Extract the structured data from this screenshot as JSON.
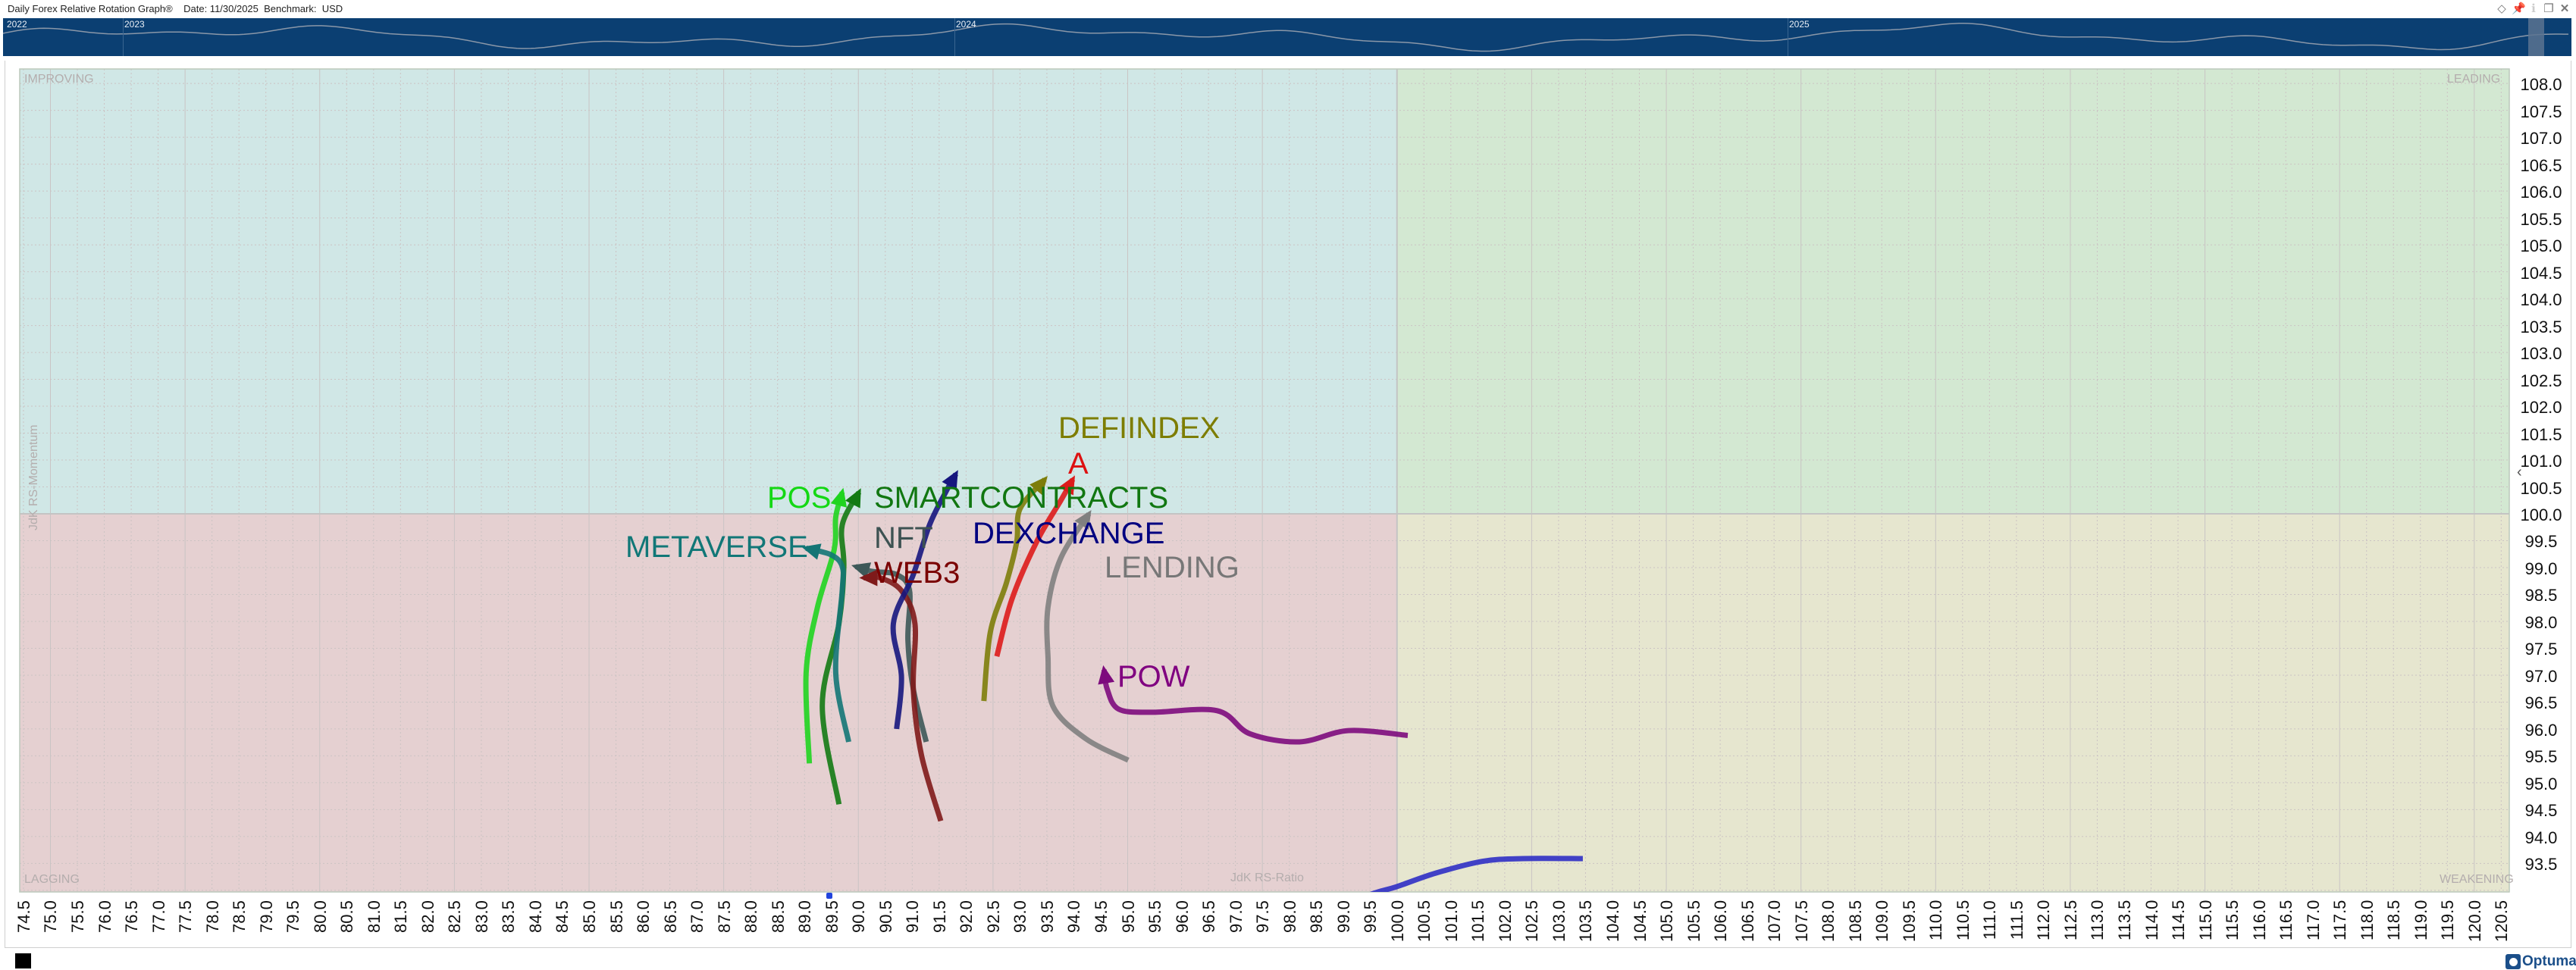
{
  "header": {
    "title": "Daily Forex Relative Rotation Graph®    Date: 11/30/2025  Benchmark:  USD",
    "icons": [
      "diamond-icon",
      "pin-icon",
      "info-icon",
      "restore-icon",
      "close-icon"
    ]
  },
  "navigator": {
    "years": [
      "2022",
      "2023",
      "2024",
      "2025"
    ],
    "background": "#0b3f72"
  },
  "quadrants": {
    "improving": "IMPROVING",
    "leading": "LEADING",
    "lagging": "LAGGING",
    "weakening": "WEAKENING"
  },
  "footer": {
    "logo": "Optuma"
  },
  "chart_data": {
    "type": "scatter",
    "title": "Daily Forex Relative Rotation Graph®",
    "xlabel": "JdK RS-Ratio",
    "ylabel": "JdK RS-Momentum",
    "xlim": [
      74.43,
      120.65
    ],
    "ylim": [
      92.97,
      108.27
    ],
    "center": [
      100,
      100
    ],
    "grid": true,
    "x_ticks": [
      "74.5",
      "75.0",
      "75.5",
      "76.0",
      "76.5",
      "77.0",
      "77.5",
      "78.0",
      "78.5",
      "79.0",
      "79.5",
      "80.0",
      "80.5",
      "81.0",
      "81.5",
      "82.0",
      "82.5",
      "83.0",
      "83.5",
      "84.0",
      "84.5",
      "85.0",
      "85.5",
      "86.0",
      "86.5",
      "87.0",
      "87.5",
      "88.0",
      "88.5",
      "89.0",
      "89.5",
      "90.0",
      "90.5",
      "91.0",
      "91.5",
      "92.0",
      "92.5",
      "93.0",
      "93.5",
      "94.0",
      "94.5",
      "95.0",
      "95.5",
      "96.0",
      "96.5",
      "97.0",
      "97.5",
      "98.0",
      "98.5",
      "99.0",
      "99.5",
      "100.0",
      "100.5",
      "101.0",
      "101.5",
      "102.0",
      "102.5",
      "103.0",
      "103.5",
      "104.0",
      "104.5",
      "105.0",
      "105.5",
      "106.0",
      "106.5",
      "107.0",
      "107.5",
      "108.0",
      "108.5",
      "109.0",
      "109.5",
      "110.0",
      "110.5",
      "111.0",
      "111.5",
      "112.0",
      "112.5",
      "113.0",
      "113.5",
      "114.0",
      "114.5",
      "115.0",
      "115.5",
      "116.0",
      "116.5",
      "117.0",
      "117.5",
      "118.0",
      "118.5",
      "119.0",
      "119.5",
      "120.0",
      "120.5"
    ],
    "y_ticks": [
      "108.0",
      "107.5",
      "107.0",
      "106.5",
      "106.0",
      "105.5",
      "105.0",
      "104.5",
      "104.0",
      "103.5",
      "103.0",
      "102.5",
      "102.0",
      "101.5",
      "101.0",
      "100.5",
      "100.0",
      "99.5",
      "99.0",
      "98.5",
      "98.0",
      "97.5",
      "97.0",
      "96.5",
      "96.0",
      "95.5",
      "95.0",
      "94.5",
      "94.0",
      "93.5"
    ],
    "series": [
      {
        "name": "POS",
        "color": "#1fd41f",
        "points": [
          [
            89.09,
            95.36
          ],
          [
            89.03,
            97.04
          ],
          [
            89.24,
            98.26
          ],
          [
            89.55,
            99.33
          ],
          [
            89.58,
            99.94
          ],
          [
            89.7,
            100.4
          ]
        ]
      },
      {
        "name": "SMARTCONTRACTS",
        "color": "#137a13",
        "points": [
          [
            89.64,
            94.6
          ],
          [
            89.33,
            96.43
          ],
          [
            89.64,
            97.96
          ],
          [
            89.73,
            99.02
          ],
          [
            89.7,
            99.79
          ],
          [
            90.01,
            100.4
          ]
        ]
      },
      {
        "name": "METAVERSE",
        "color": "#137575",
        "points": [
          [
            89.82,
            95.76
          ],
          [
            89.58,
            97.04
          ],
          [
            89.7,
            98.57
          ],
          [
            89.7,
            99.02
          ],
          [
            89.49,
            99.24
          ],
          [
            89.03,
            99.36
          ]
        ]
      },
      {
        "name": "NFT",
        "color": "#3d5858",
        "points": [
          [
            91.26,
            95.76
          ],
          [
            91.02,
            96.74
          ],
          [
            90.92,
            97.65
          ],
          [
            90.95,
            98.57
          ],
          [
            90.71,
            98.87
          ],
          [
            90.25,
            98.93
          ],
          [
            89.95,
            99.02
          ]
        ]
      },
      {
        "name": "WEB3",
        "color": "#7f1a1a",
        "points": [
          [
            91.53,
            94.29
          ],
          [
            91.17,
            95.52
          ],
          [
            91.02,
            96.74
          ],
          [
            91.05,
            97.96
          ],
          [
            90.8,
            98.57
          ],
          [
            90.4,
            98.81
          ],
          [
            90.1,
            98.81
          ]
        ]
      },
      {
        "name": "DEXCHANGE",
        "color": "#16167e",
        "points": [
          [
            90.71,
            96.0
          ],
          [
            90.8,
            96.97
          ],
          [
            90.65,
            97.96
          ],
          [
            91.02,
            98.87
          ],
          [
            91.32,
            99.79
          ],
          [
            91.62,
            100.4
          ],
          [
            91.81,
            100.74
          ]
        ]
      },
      {
        "name": "DEFIINDEX",
        "color": "#7d7d0a",
        "points": [
          [
            92.33,
            96.52
          ],
          [
            92.45,
            97.8
          ],
          [
            92.75,
            98.72
          ],
          [
            92.94,
            99.48
          ],
          [
            93.0,
            100.09
          ],
          [
            93.46,
            100.64
          ]
        ]
      },
      {
        "name": "A",
        "color": "#dd1b1b",
        "points": [
          [
            92.57,
            97.35
          ],
          [
            92.85,
            98.41
          ],
          [
            93.31,
            99.48
          ],
          [
            93.76,
            100.25
          ],
          [
            93.98,
            100.64
          ]
        ]
      },
      {
        "name": "LENDING",
        "color": "#808080",
        "points": [
          [
            95.01,
            95.42
          ],
          [
            94.22,
            95.82
          ],
          [
            93.61,
            96.43
          ],
          [
            93.52,
            97.35
          ],
          [
            93.52,
            98.26
          ],
          [
            93.76,
            99.18
          ],
          [
            94.28,
            100.0
          ]
        ]
      },
      {
        "name": "POW",
        "color": "#7d0b7d",
        "points": [
          [
            100.2,
            95.88
          ],
          [
            99.1,
            95.97
          ],
          [
            98.19,
            95.76
          ],
          [
            97.27,
            95.91
          ],
          [
            96.66,
            96.34
          ],
          [
            95.44,
            96.31
          ],
          [
            94.83,
            96.37
          ],
          [
            94.62,
            96.74
          ],
          [
            94.56,
            97.1
          ]
        ]
      },
      {
        "color": "#2f2fc4",
        "points": [
          [
            103.45,
            93.59
          ],
          [
            102.34,
            93.59
          ],
          [
            101.59,
            93.54
          ],
          [
            100.72,
            93.32
          ],
          [
            100.0,
            93.07
          ],
          [
            99.65,
            92.97
          ],
          [
            99.3,
            92.85
          ]
        ]
      }
    ]
  }
}
